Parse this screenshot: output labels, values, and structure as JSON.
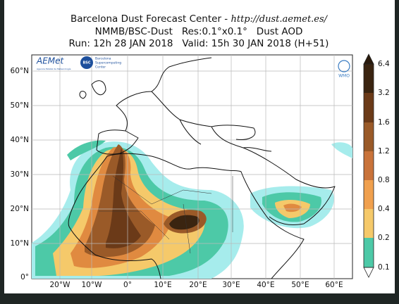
{
  "header": {
    "title_line1": "Barcelona Dust Forecast Center - ",
    "url": "http://dust.aemet.es/",
    "title_line2": "NMMB/BSC-Dust   Res:0.1°x0.1°   Dust AOD",
    "title_line3": "Run: 12h 28 JAN 2018   Valid: 15h 30 JAN 2018 (H+51)"
  },
  "map": {
    "lat_labels": [
      "60°N",
      "50°N",
      "40°N",
      "30°N",
      "20°N",
      "10°N",
      "0°"
    ],
    "lon_labels": [
      "20°W",
      "10°W",
      "0°",
      "10°E",
      "20°E",
      "30°E",
      "40°E",
      "50°E",
      "60°E"
    ]
  },
  "logos": {
    "aemet": "AEMet",
    "aemet_sub": "Agencia Estatal de Meteorología",
    "bsc": "BSC",
    "bsc_text": [
      "Barcelona",
      "Supercomputing",
      "Center"
    ],
    "wmo": "WMO"
  },
  "colorbar": {
    "labels": [
      "6.4",
      "3.2",
      "1.6",
      "1.2",
      "0.8",
      "0.4",
      "0.2",
      "0.1"
    ]
  }
}
